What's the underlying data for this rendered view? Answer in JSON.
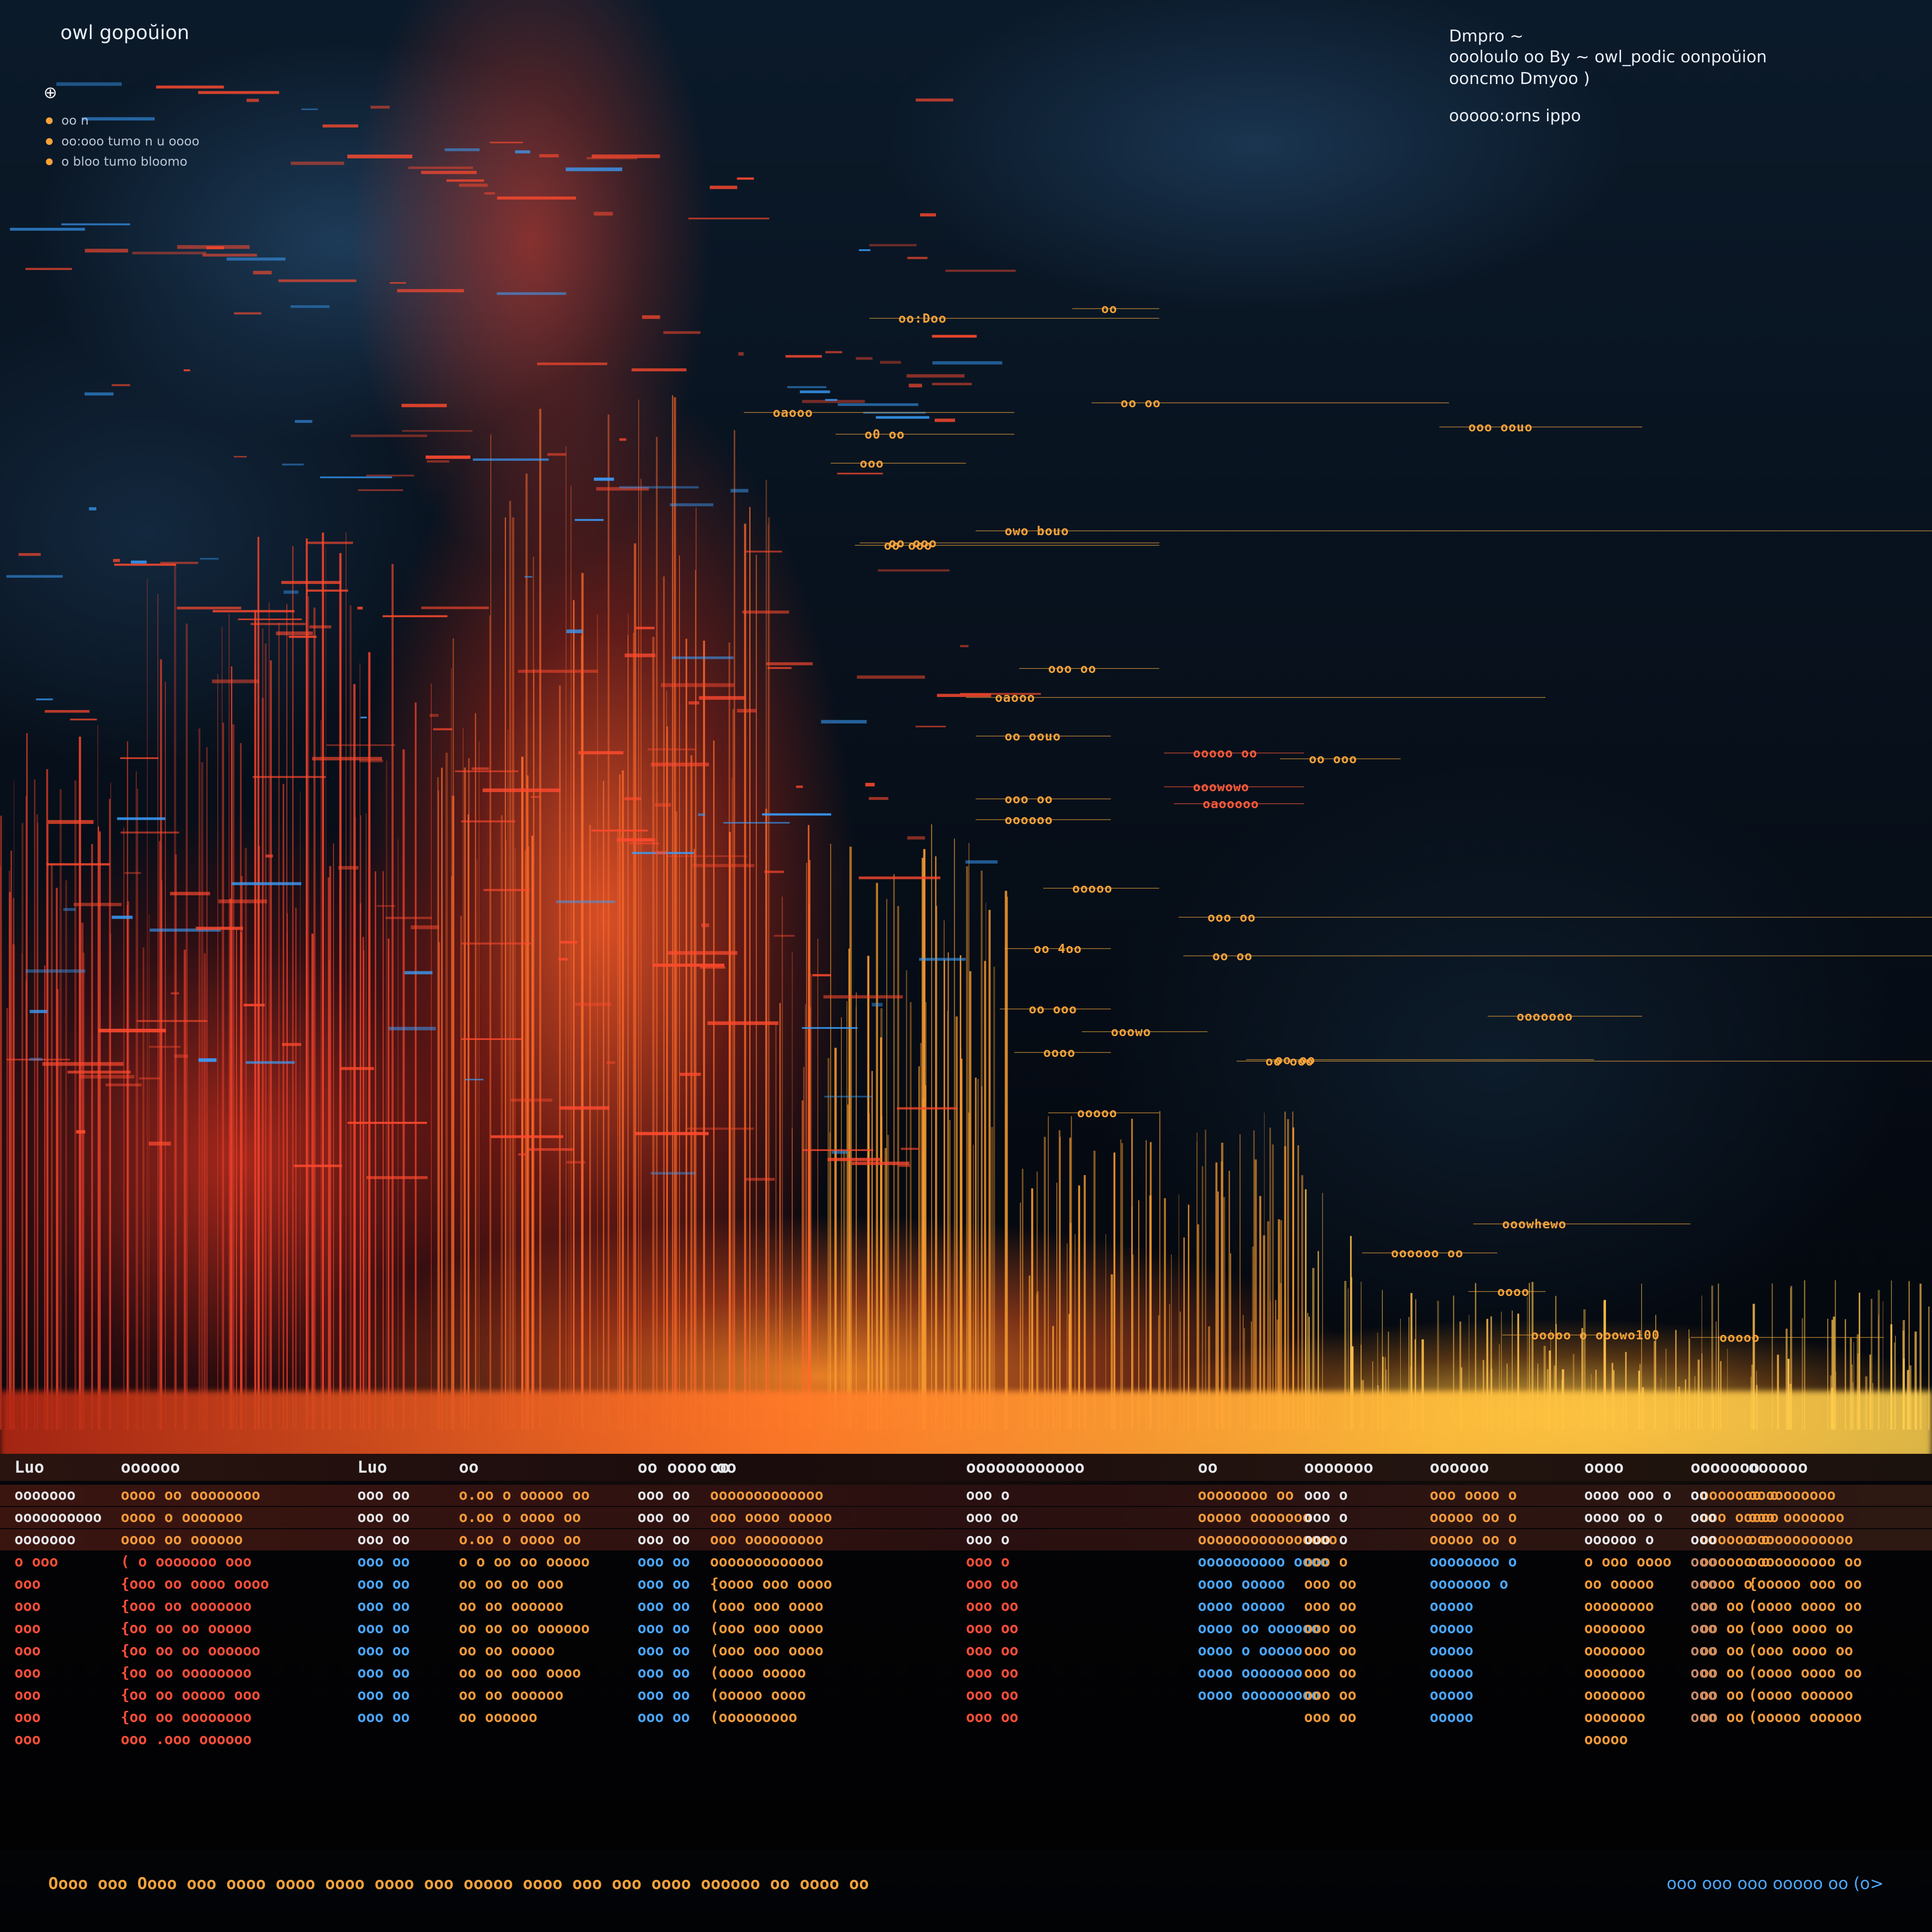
{
  "title": "owl gopoŭion",
  "legend": {
    "head": "⊕",
    "items": [
      {
        "text": "oo n",
        "color": "#f6a23a"
      },
      {
        "text": "oo:ooo tumo n u oooo",
        "color": "#f6a23a"
      },
      {
        "text": "o bloo tumo bloomo",
        "color": "#f6a23a"
      }
    ]
  },
  "info": {
    "line1": "Dmpro ~",
    "line2": "oooloulo oo By ~ owl_podic oonpoŭion",
    "line3": "ooncmo Dmyoo )",
    "line4": "ooooo:orns ippo"
  },
  "callouts": [
    "oaooo",
    "o0 oo",
    "oo oo",
    "ooo oouo",
    "oo ooo",
    "owo bouo",
    "ooo oo",
    "oaooo",
    "oo oouo",
    "ooooo oo",
    "oo ooo",
    "ooowowo",
    "oaooooo",
    "ooo oo",
    "oooooo",
    "ooooo",
    "ooo oo",
    "oo 4oo",
    "oo oo",
    "oo ooo",
    "ooowo",
    "oooo",
    "oo ooo",
    "ooooooo",
    "oo oo",
    "ooooo",
    "ooowhewo",
    "oooooo oo",
    "oooo",
    "ooooo o ooowo100",
    "ooooo",
    "oo ooo",
    "ooo",
    "oo:Doo",
    "oo"
  ],
  "table": {
    "columns": [
      "Luo",
      "oooooo",
      "Luo",
      "oo",
      "oo oooo oo",
      "oo",
      "oooooooooooo",
      "oo",
      "ooooooo",
      "oooooo",
      "oooo",
      "oooooo",
      "ooo",
      "oooooo"
    ],
    "rows": [
      [
        "ooooooo",
        "oooo oo oooooooo",
        "ooo oo",
        "o.oo o ooooo oo",
        "ooo oo",
        "ooooooooooooo",
        "ooo o",
        "oooooooo oo",
        "ooo o",
        "ooo oooo o",
        "oooo ooo o",
        "ooooooo o",
        "oo",
        "oooooooooo"
      ],
      [
        "oooooooooo",
        "oooo o ooooooo",
        "ooo oo",
        "o.oo o oooo oo",
        "ooo oo",
        "ooo oooo ooooo",
        "ooo oo",
        "ooooo ooooooo",
        "ooo o",
        "ooooo oo o",
        "oooo oo o",
        "ooo ooooo",
        "ooo",
        "ooo ooooooo"
      ],
      [
        "ooooooo",
        "oooo oo oooooo",
        "ooo oo",
        "o.oo o oooo oo",
        "ooo oo",
        "ooo ooooooooo",
        "ooo o",
        "oooooooooooooooo",
        "ooo o",
        "ooooo oo o",
        "oooooo o",
        "oooooo o",
        "ooo",
        "oooooooooooo"
      ],
      [
        "o ooo",
        "( o ooooooo ooo",
        "ooo oo",
        "o o oo oo ooooo",
        "ooo oo",
        "ooooooooooooo",
        "ooo o",
        "oooooooooo oooo",
        "ooo o",
        "oooooooo o",
        "o ooo oooo",
        "oooooo o",
        "ooo",
        "oooooooooo oo"
      ],
      [
        "ooo",
        "{ooo oo oooo oooo",
        "ooo oo",
        "oo oo oo ooo",
        "ooo oo",
        "{oooo ooo oooo",
        "ooo oo",
        "oooo ooooo",
        "ooo oo",
        "ooooooo o",
        "oo ooooo",
        "oooo o",
        "ooo",
        "{ooooo ooo oo"
      ],
      [
        "ooo",
        "{ooo oo ooooooo",
        "ooo oo",
        "oo oo oooooo",
        "ooo oo",
        "(ooo ooo oooo",
        "ooo oo",
        "oooo ooooo",
        "ooo oo",
        "ooooo",
        "oooooooo",
        "oo oo",
        "ooo",
        "(oooo oooo oo"
      ],
      [
        "ooo",
        "{oo oo oo ooooo",
        "ooo oo",
        "oo oo oo oooooo",
        "ooo oo",
        "(ooo ooo oooo",
        "ooo oo",
        "oooo oo oooooo",
        "ooo oo",
        "ooooo",
        "ooooooo",
        "oo oo",
        "ooo",
        "(ooo oooo oo"
      ],
      [
        "ooo",
        "{oo oo oo oooooo",
        "ooo oo",
        "oo oo ooooo",
        "ooo oo",
        "(ooo ooo oooo",
        "ooo oo",
        "oooo o ooooo",
        "ooo oo",
        "ooooo",
        "ooooooo",
        "oo oo",
        "ooo",
        "(ooo oooo oo"
      ],
      [
        "ooo",
        "{oo oo oooooooo",
        "ooo oo",
        "oo oo ooo oooo",
        "ooo oo",
        "(oooo ooooo",
        "ooo oo",
        "oooo ooooooo",
        "ooo oo",
        "ooooo",
        "ooooooo",
        "oo oo",
        "ooo",
        "(oooo oooo oo"
      ],
      [
        "ooo",
        "{oo oo ooooo ooo",
        "ooo oo",
        "oo oo oooooo",
        "ooo oo",
        "(ooooo oooo",
        "ooo oo",
        "oooo ooooooooo",
        "ooo oo",
        "ooooo",
        "ooooooo",
        "oo oo",
        "ooo",
        "(oooo oooooo"
      ],
      [
        "ooo",
        "{oo oo oooooooo",
        "ooo oo",
        "oo oooooo",
        "ooo oo",
        "(ooooooooo",
        "ooo oo",
        "",
        "ooo oo",
        "ooooo",
        "ooooooo",
        "oo oo",
        "ooo",
        "(ooooo oooooo"
      ],
      [
        "ooo",
        "ooo .ooo oooooo",
        "",
        "",
        "",
        "",
        "",
        "",
        "",
        "",
        "ooooo",
        "",
        "",
        ""
      ]
    ]
  },
  "footer": {
    "left": "Oooo ooo Oooo ooo oooo oooo oooo oooo ooo ooooo oooo ooo ooo oooo oooooo oo oooo oo",
    "right": "ooo ooo ooo ooooo oo (o>"
  }
}
